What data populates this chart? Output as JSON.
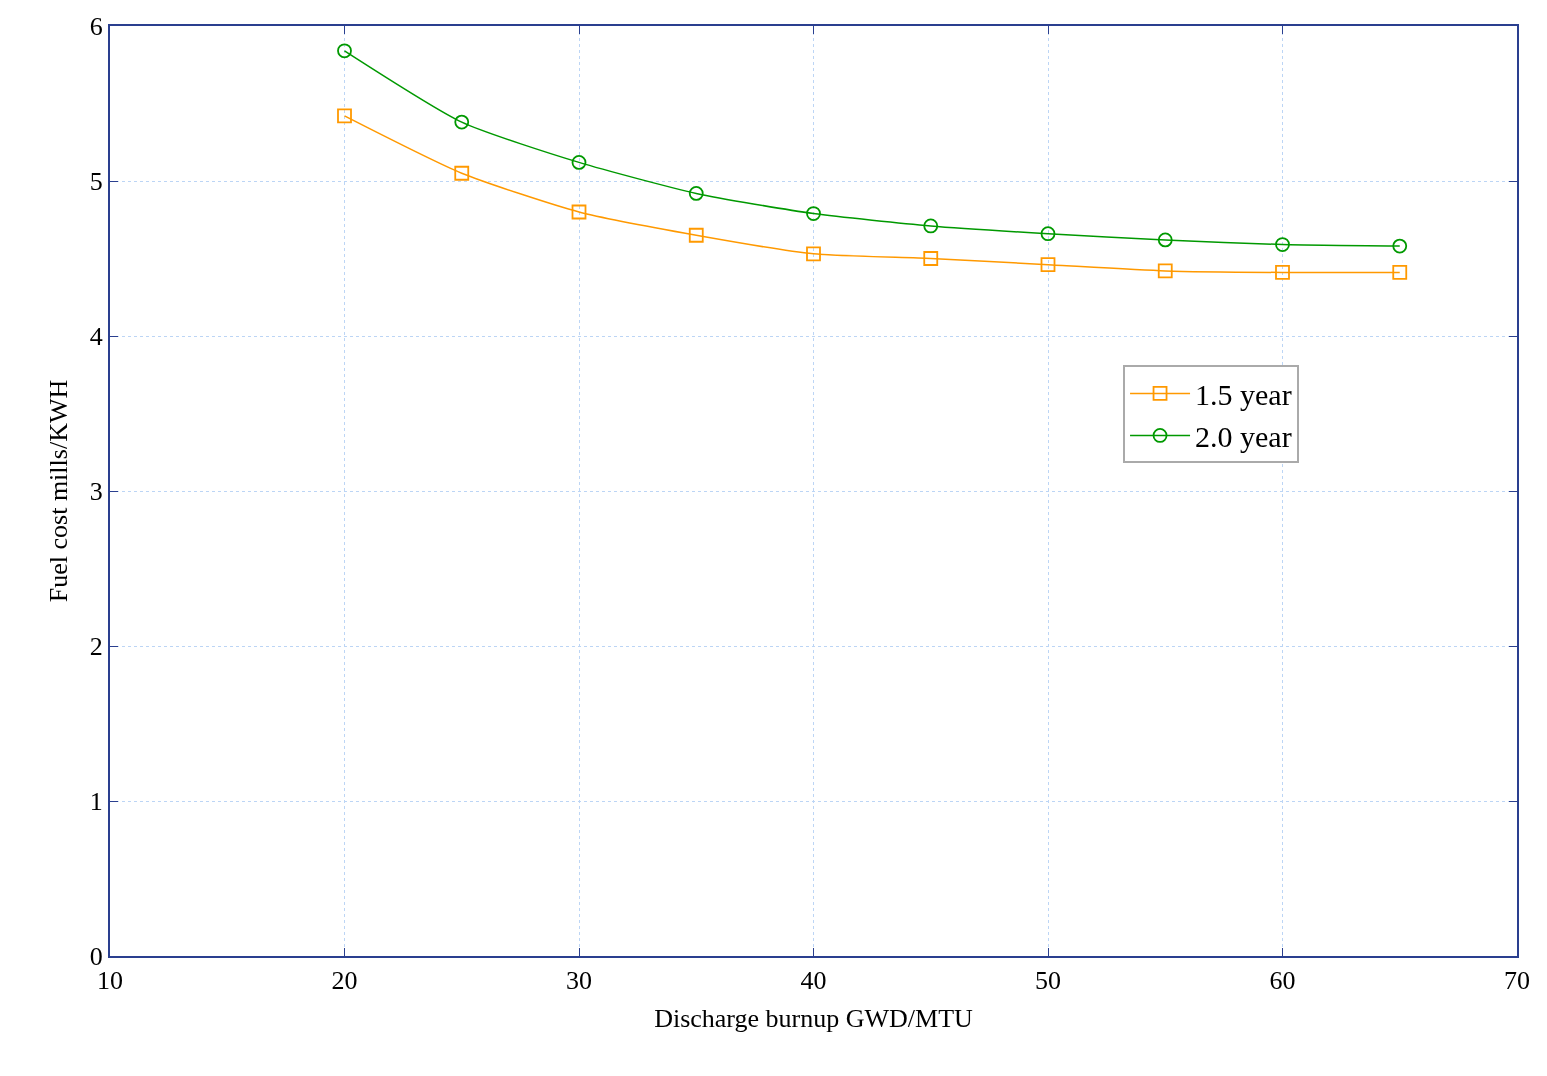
{
  "chart_data": {
    "type": "line",
    "xlabel": "Discharge burnup GWD/MTU",
    "ylabel": "Fuel cost mills/KWH",
    "x": [
      20,
      25,
      30,
      35,
      40,
      45,
      50,
      55,
      60,
      65
    ],
    "series": [
      {
        "name": "1.5 year",
        "color": "#ff9900",
        "marker": "square",
        "values": [
          5.42,
          5.05,
          4.8,
          4.65,
          4.53,
          4.5,
          4.46,
          4.42,
          4.41,
          4.41
        ]
      },
      {
        "name": "2.0 year",
        "color": "#009900",
        "marker": "circle",
        "values": [
          5.84,
          5.38,
          5.12,
          4.92,
          4.79,
          4.71,
          4.66,
          4.62,
          4.59,
          4.58
        ]
      }
    ],
    "xlim": [
      10,
      70
    ],
    "xticks": [
      10,
      20,
      30,
      40,
      50,
      60,
      70
    ],
    "ylim": [
      0,
      6
    ],
    "yticks": [
      0,
      1,
      2,
      3,
      4,
      5,
      6
    ],
    "grid": true,
    "legend": "right",
    "line_style": "solid"
  }
}
